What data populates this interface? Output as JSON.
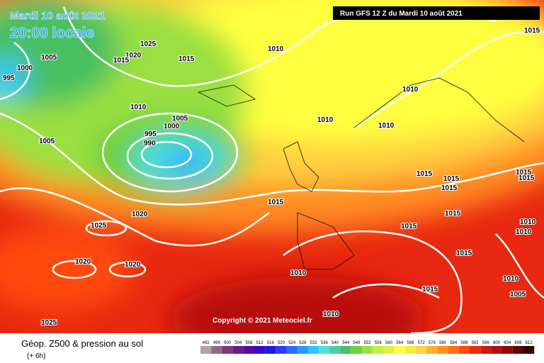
{
  "header": {
    "date": "Mardi 10 août 2021",
    "time": "20:00 locale",
    "run": "Run GFS 12 Z du Mardi 10 août 2021"
  },
  "isobars": [
    "1015",
    "1025",
    "1020",
    "1015",
    "1015",
    "1010",
    "1005",
    "1000",
    "995",
    "1010",
    "1010",
    "1005",
    "1000",
    "995",
    "990",
    "1010",
    "1005",
    "1010",
    "1015",
    "1015",
    "1015",
    "1015",
    "1015",
    "1015",
    "1020",
    "1015",
    "1025",
    "1015",
    "1010",
    "1010",
    "1015",
    "1020",
    "1020",
    "1010",
    "1010",
    "1015",
    "1005",
    "1010",
    "1025"
  ],
  "copyright": "Copyright © 2021 Meteociel.fr",
  "legend": {
    "title": "Géop. Z500 & pression au sol",
    "subtitle": "(+ 6h)",
    "scale": [
      {
        "label": "492",
        "color": "#b0a0b0"
      },
      {
        "label": "496",
        "color": "#8a6a8a"
      },
      {
        "label": "500",
        "color": "#7a3a7a"
      },
      {
        "label": "504",
        "color": "#6a1a8a"
      },
      {
        "label": "508",
        "color": "#5a0aa0"
      },
      {
        "label": "512",
        "color": "#3a0ac0"
      },
      {
        "label": "516",
        "color": "#1a1ae0"
      },
      {
        "label": "520",
        "color": "#2a3aff"
      },
      {
        "label": "524",
        "color": "#2a6aff"
      },
      {
        "label": "528",
        "color": "#2a9aff"
      },
      {
        "label": "532",
        "color": "#2acaff"
      },
      {
        "label": "536",
        "color": "#4ae0e0"
      },
      {
        "label": "540",
        "color": "#4ad0a0"
      },
      {
        "label": "544",
        "color": "#4ac060"
      },
      {
        "label": "548",
        "color": "#6ad040"
      },
      {
        "label": "552",
        "color": "#9ae040"
      },
      {
        "label": "556",
        "color": "#c0f040"
      },
      {
        "label": "560",
        "color": "#e0f040"
      },
      {
        "label": "564",
        "color": "#ffff40"
      },
      {
        "label": "568",
        "color": "#ffe840"
      },
      {
        "label": "572",
        "color": "#ffd040"
      },
      {
        "label": "576",
        "color": "#ffb030"
      },
      {
        "label": "580",
        "color": "#ff9020"
      },
      {
        "label": "584",
        "color": "#ff7010"
      },
      {
        "label": "588",
        "color": "#ff4a10"
      },
      {
        "label": "592",
        "color": "#f02a10"
      },
      {
        "label": "596",
        "color": "#d01a10"
      },
      {
        "label": "600",
        "color": "#b01010"
      },
      {
        "label": "604",
        "color": "#900a0a"
      },
      {
        "label": "608",
        "color": "#600505"
      },
      {
        "label": "612",
        "color": "#300000"
      }
    ]
  }
}
